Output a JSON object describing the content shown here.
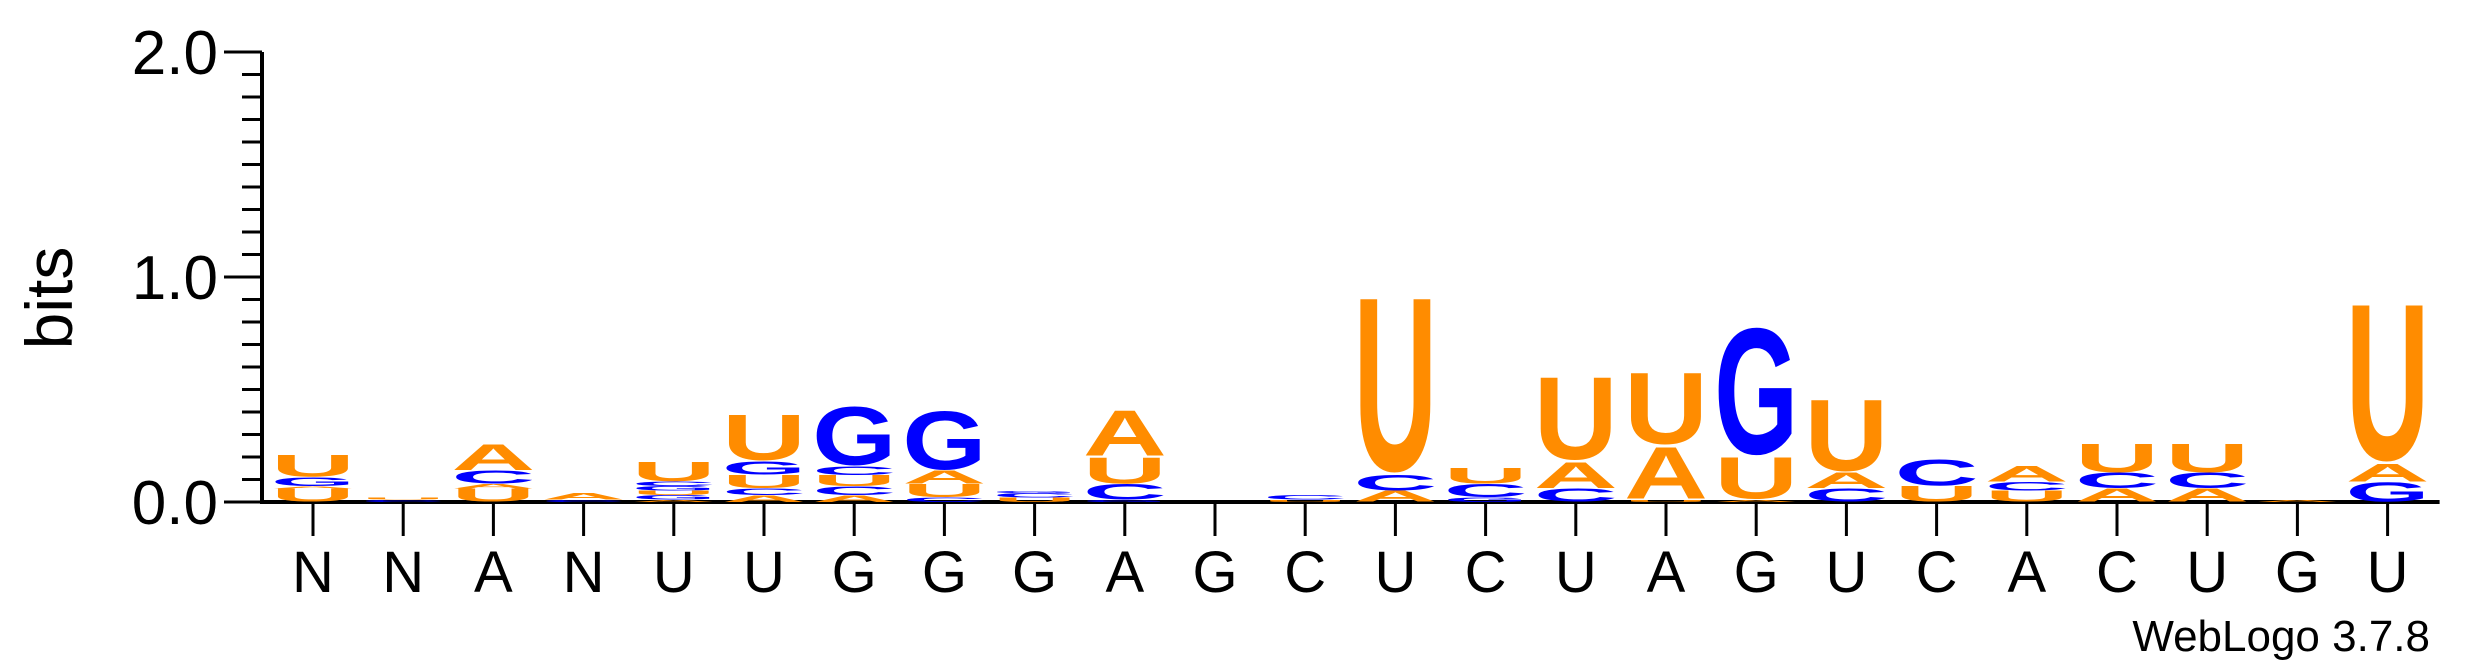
{
  "chart_data": {
    "type": "sequence-logo",
    "ylabel": "bits",
    "ylim": [
      0,
      2
    ],
    "yticks": [
      {
        "value": 0,
        "label": "0.0"
      },
      {
        "value": 1,
        "label": "1.0"
      },
      {
        "value": 2,
        "label": "2.0"
      }
    ],
    "x_labels": [
      "N",
      "N",
      "A",
      "N",
      "U",
      "U",
      "G",
      "G",
      "G",
      "A",
      "G",
      "C",
      "U",
      "C",
      "U",
      "A",
      "G",
      "U",
      "C",
      "A",
      "C",
      "U",
      "G",
      "U"
    ],
    "colors": {
      "U": "#FF8C00",
      "A": "#FF8C00",
      "G": "#0000FF",
      "C": "#0000FF",
      "axis": "#000000"
    },
    "columns": [
      [
        {
          "base": "U",
          "bits": 0.06
        },
        {
          "base": "A",
          "bits": 0.01
        },
        {
          "base": "G",
          "bits": 0.04
        },
        {
          "base": "U",
          "bits": 0.1
        }
      ],
      [
        {
          "base": "C",
          "bits": 0.01
        },
        {
          "base": "U",
          "bits": 0.01
        }
      ],
      [
        {
          "base": "U",
          "bits": 0.06
        },
        {
          "base": "A",
          "bits": 0.02
        },
        {
          "base": "C",
          "bits": 0.06
        },
        {
          "base": "A",
          "bits": 0.12
        }
      ],
      [
        {
          "base": "C",
          "bits": 0.01
        },
        {
          "base": "A",
          "bits": 0.03
        }
      ],
      [
        {
          "base": "A",
          "bits": 0.01
        },
        {
          "base": "G",
          "bits": 0.02
        },
        {
          "base": "U",
          "bits": 0.02
        },
        {
          "base": "G",
          "bits": 0.02
        },
        {
          "base": "C",
          "bits": 0.02
        },
        {
          "base": "U",
          "bits": 0.09
        }
      ],
      [
        {
          "base": "A",
          "bits": 0.03
        },
        {
          "base": "C",
          "bits": 0.03
        },
        {
          "base": "U",
          "bits": 0.06
        },
        {
          "base": "G",
          "bits": 0.06
        },
        {
          "base": "U",
          "bits": 0.21
        }
      ],
      [
        {
          "base": "A",
          "bits": 0.03
        },
        {
          "base": "C",
          "bits": 0.04
        },
        {
          "base": "U",
          "bits": 0.05
        },
        {
          "base": "C",
          "bits": 0.04
        },
        {
          "base": "G",
          "bits": 0.27
        }
      ],
      [
        {
          "base": "C",
          "bits": 0.02
        },
        {
          "base": "U",
          "bits": 0.06
        },
        {
          "base": "A",
          "bits": 0.06
        },
        {
          "base": "G",
          "bits": 0.27
        }
      ],
      [
        {
          "base": "U",
          "bits": 0.02
        },
        {
          "base": "C",
          "bits": 0.02
        },
        {
          "base": "G",
          "bits": 0.01
        }
      ],
      [
        {
          "base": "G",
          "bits": 0.01
        },
        {
          "base": "C",
          "bits": 0.07
        },
        {
          "base": "U",
          "bits": 0.12
        },
        {
          "base": "A",
          "bits": 0.21
        }
      ],
      [],
      [
        {
          "base": "U",
          "bits": 0.01
        },
        {
          "base": "C",
          "bits": 0.02
        }
      ],
      [
        {
          "base": "A",
          "bits": 0.05
        },
        {
          "base": "C",
          "bits": 0.07
        },
        {
          "base": "U",
          "bits": 0.8
        }
      ],
      [
        {
          "base": "G",
          "bits": 0.02
        },
        {
          "base": "C",
          "bits": 0.06
        },
        {
          "base": "U",
          "bits": 0.07
        }
      ],
      [
        {
          "base": "C",
          "bits": 0.06
        },
        {
          "base": "A",
          "bits": 0.12
        },
        {
          "base": "U",
          "bits": 0.38
        }
      ],
      [
        {
          "base": "U",
          "bits": 0.01
        },
        {
          "base": "A",
          "bits": 0.24
        },
        {
          "base": "U",
          "bits": 0.33
        }
      ],
      [
        {
          "base": "A",
          "bits": 0.01
        },
        {
          "base": "U",
          "bits": 0.19
        },
        {
          "base": "G",
          "bits": 0.58
        }
      ],
      [
        {
          "base": "C",
          "bits": 0.06
        },
        {
          "base": "A",
          "bits": 0.07
        },
        {
          "base": "U",
          "bits": 0.33
        }
      ],
      [
        {
          "base": "U",
          "bits": 0.07
        },
        {
          "base": "C",
          "bits": 0.12
        }
      ],
      [
        {
          "base": "U",
          "bits": 0.05
        },
        {
          "base": "C",
          "bits": 0.04
        },
        {
          "base": "A",
          "bits": 0.07
        }
      ],
      [
        {
          "base": "A",
          "bits": 0.06
        },
        {
          "base": "C",
          "bits": 0.07
        },
        {
          "base": "U",
          "bits": 0.13
        }
      ],
      [
        {
          "base": "A",
          "bits": 0.06
        },
        {
          "base": "C",
          "bits": 0.07
        },
        {
          "base": "U",
          "bits": 0.13
        }
      ],
      [
        {
          "base": "A",
          "bits": 0.01
        }
      ],
      [
        {
          "base": "G",
          "bits": 0.09
        },
        {
          "base": "A",
          "bits": 0.08
        },
        {
          "base": "U",
          "bits": 0.72
        }
      ]
    ]
  },
  "footer": {
    "credit": "WebLogo 3.7.8"
  }
}
